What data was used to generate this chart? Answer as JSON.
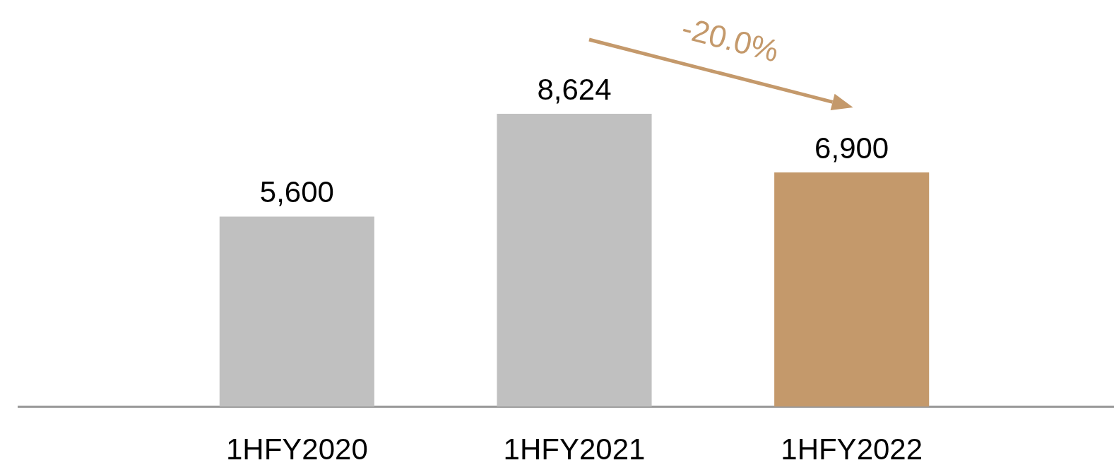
{
  "chart_data": {
    "type": "bar",
    "categories": [
      "1HFY2020",
      "1HFY2021",
      "1HFY2022"
    ],
    "values": [
      5600,
      8624,
      6900
    ],
    "colors": [
      "#c0c0c0",
      "#c0c0c0",
      "#c4996b"
    ],
    "value_labels": [
      "5,600",
      "8,624",
      "6,900"
    ],
    "annotations": [
      "-20.0%"
    ]
  }
}
